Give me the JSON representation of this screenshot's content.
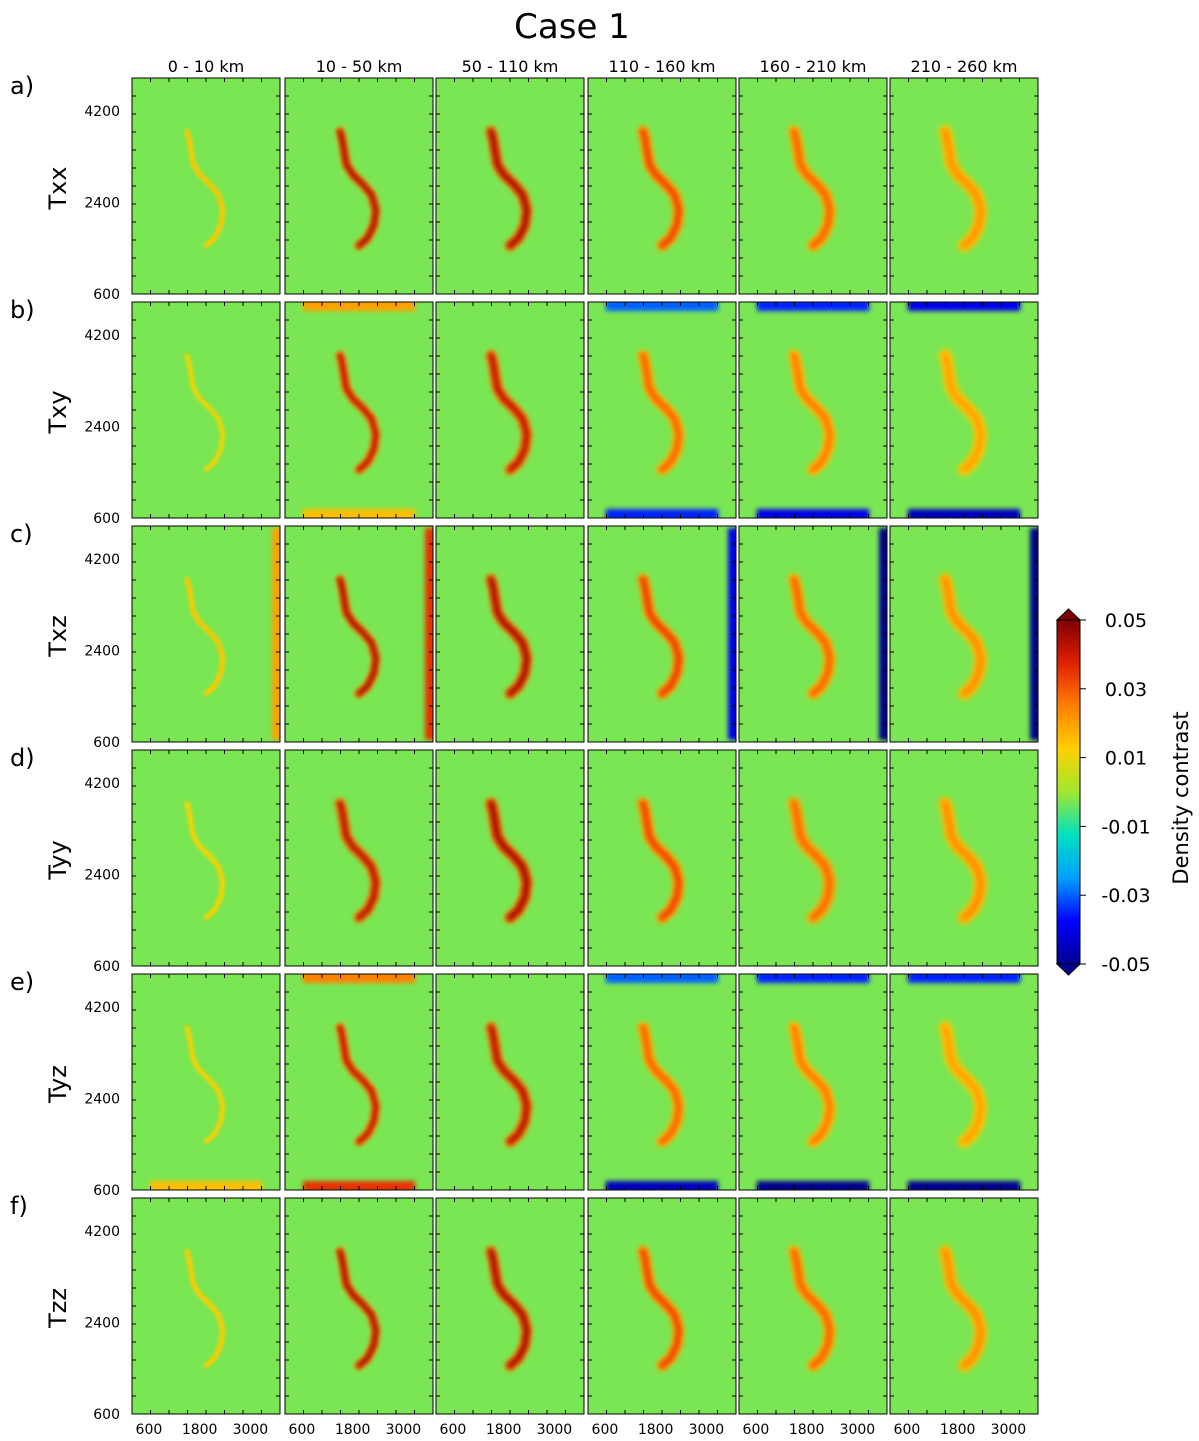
{
  "figure": {
    "title": "Case 1",
    "colorbar_label": "Density contrast",
    "colorbar_ticks": [
      "0.05",
      "0.03",
      "0.01",
      "-0.01",
      "-0.03",
      "-0.05"
    ]
  },
  "chart_data": {
    "type": "heatmap",
    "title": "Case 1",
    "colormap": "jet",
    "clim": [
      -0.05,
      0.05
    ],
    "columns": [
      "0 - 10 km",
      "10 - 50 km",
      "50 - 110 km",
      "110 - 160 km",
      "160 - 210 km",
      "210 - 260 km"
    ],
    "rows": [
      {
        "letter": "a)",
        "name": "Txx"
      },
      {
        "letter": "b)",
        "name": "Txy"
      },
      {
        "letter": "c)",
        "name": "Txz"
      },
      {
        "letter": "d)",
        "name": "Tyy"
      },
      {
        "letter": "e)",
        "name": "Tyz"
      },
      {
        "letter": "f)",
        "name": "Tzz"
      }
    ],
    "x_ticks": [
      "600",
      "1800",
      "3000"
    ],
    "x_tick_values": [
      600,
      1800,
      3000
    ],
    "xlim": [
      200,
      3700
    ],
    "y_ticks": [
      "4200",
      "2400",
      "600"
    ],
    "y_tick_values": [
      4200,
      2400,
      600
    ],
    "ylim": [
      600,
      4850
    ],
    "background_value": -0.003,
    "anomaly_path": [
      [
        1500,
        3800
      ],
      [
        1550,
        3650
      ],
      [
        1600,
        3400
      ],
      [
        1650,
        3150
      ],
      [
        1800,
        2950
      ],
      [
        2050,
        2750
      ],
      [
        2250,
        2550
      ],
      [
        2350,
        2250
      ],
      [
        2300,
        1950
      ],
      [
        2150,
        1700
      ],
      [
        1950,
        1550
      ]
    ],
    "anomaly_peak": [
      [
        0.015,
        0.045,
        0.045,
        0.032,
        0.028,
        0.022
      ],
      [
        0.012,
        0.042,
        0.042,
        0.028,
        0.025,
        0.02
      ],
      [
        0.015,
        0.045,
        0.045,
        0.033,
        0.028,
        0.023
      ],
      [
        0.012,
        0.043,
        0.045,
        0.032,
        0.028,
        0.023
      ],
      [
        0.013,
        0.042,
        0.043,
        0.028,
        0.025,
        0.02
      ],
      [
        0.014,
        0.045,
        0.045,
        0.032,
        0.028,
        0.023
      ]
    ],
    "anomaly_width": [
      [
        45,
        90,
        110,
        115,
        120,
        125
      ],
      [
        40,
        90,
        110,
        115,
        120,
        125
      ],
      [
        45,
        90,
        110,
        115,
        120,
        125
      ],
      [
        45,
        105,
        120,
        120,
        125,
        130
      ],
      [
        42,
        90,
        110,
        115,
        120,
        125
      ],
      [
        45,
        90,
        110,
        115,
        120,
        125
      ]
    ],
    "edge_effects": [
      {
        "row": 1,
        "col": 1,
        "side": "top",
        "value": 0.02
      },
      {
        "row": 1,
        "col": 1,
        "side": "bottom",
        "value": 0.015
      },
      {
        "row": 1,
        "col": 3,
        "side": "top",
        "value": -0.03
      },
      {
        "row": 1,
        "col": 3,
        "side": "bottom",
        "value": -0.035
      },
      {
        "row": 1,
        "col": 4,
        "side": "top",
        "value": -0.035
      },
      {
        "row": 1,
        "col": 4,
        "side": "bottom",
        "value": -0.04
      },
      {
        "row": 1,
        "col": 5,
        "side": "top",
        "value": -0.04
      },
      {
        "row": 1,
        "col": 5,
        "side": "bottom",
        "value": -0.045
      },
      {
        "row": 2,
        "col": 0,
        "side": "right",
        "value": 0.02
      },
      {
        "row": 2,
        "col": 1,
        "side": "right",
        "value": 0.035
      },
      {
        "row": 2,
        "col": 3,
        "side": "right",
        "value": -0.04
      },
      {
        "row": 2,
        "col": 4,
        "side": "right",
        "value": -0.05
      },
      {
        "row": 2,
        "col": 5,
        "side": "right",
        "value": -0.05
      },
      {
        "row": 4,
        "col": 1,
        "side": "top",
        "value": 0.025
      },
      {
        "row": 4,
        "col": 1,
        "side": "bottom",
        "value": 0.035
      },
      {
        "row": 4,
        "col": 0,
        "side": "bottom",
        "value": 0.015
      },
      {
        "row": 4,
        "col": 3,
        "side": "top",
        "value": -0.03
      },
      {
        "row": 4,
        "col": 3,
        "side": "bottom",
        "value": -0.045
      },
      {
        "row": 4,
        "col": 4,
        "side": "top",
        "value": -0.035
      },
      {
        "row": 4,
        "col": 4,
        "side": "bottom",
        "value": -0.05
      },
      {
        "row": 4,
        "col": 5,
        "side": "top",
        "value": -0.035
      },
      {
        "row": 4,
        "col": 5,
        "side": "bottom",
        "value": -0.05
      }
    ]
  }
}
